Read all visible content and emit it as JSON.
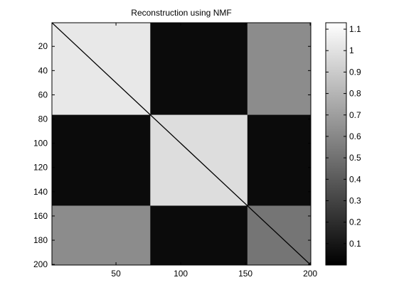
{
  "chart_data": {
    "type": "heatmap",
    "title": "Reconstruction using NMF",
    "xlabel": "",
    "ylabel": "",
    "size": 200,
    "xlim": [
      0.5,
      200.5
    ],
    "ylim": [
      0.5,
      200.5
    ],
    "y_direction": "down",
    "x_ticks": [
      50,
      100,
      150,
      200
    ],
    "x_tick_labels": [
      "50",
      "100",
      "150",
      "200"
    ],
    "y_ticks": [
      20,
      40,
      60,
      80,
      100,
      120,
      140,
      160,
      180,
      200
    ],
    "y_tick_labels": [
      "20",
      "40",
      "60",
      "80",
      "100",
      "120",
      "140",
      "160",
      "180",
      "200"
    ],
    "block_boundaries": [
      1,
      77,
      152,
      200
    ],
    "block_values": [
      [
        1.03,
        0.05,
        0.62
      ],
      [
        0.05,
        0.98,
        0.05
      ],
      [
        0.62,
        0.05,
        0.52
      ]
    ],
    "diagonal_value": 0.0,
    "colormap": "gray",
    "clim": [
      0,
      1.13
    ],
    "colorbar": {
      "position": "right",
      "ticks": [
        0.1,
        0.2,
        0.3,
        0.4,
        0.5,
        0.6,
        0.7,
        0.8,
        0.9,
        1,
        1.1
      ],
      "tick_labels": [
        "0.1",
        "0.2",
        "0.3",
        "0.4",
        "0.5",
        "0.6",
        "0.7",
        "0.8",
        "0.9",
        "1",
        "1.1"
      ]
    },
    "grid": false
  }
}
